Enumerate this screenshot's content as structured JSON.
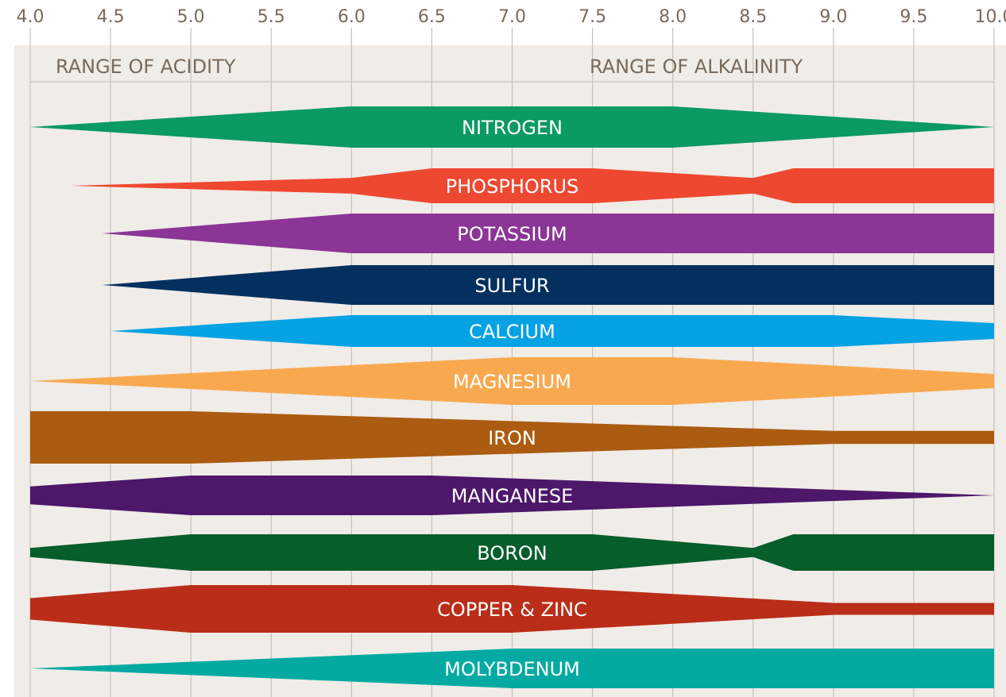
{
  "chart_data": {
    "type": "area",
    "title": "",
    "xlabel": "",
    "ylabel": "",
    "xlim": [
      4.0,
      10.0
    ],
    "grid": true,
    "x_ticks": [
      "4.0",
      "4.5",
      "5.0",
      "5.5",
      "6.0",
      "6.5",
      "7.0",
      "7.5",
      "8.0",
      "8.5",
      "9.0",
      "9.5",
      "10.0"
    ],
    "range_labels": {
      "left": "RANGE OF ACIDITY",
      "right": "RANGE OF ALKALINITY"
    },
    "bg_color": "#f0ece8",
    "grid_color": "#c8c0b8",
    "series": [
      {
        "name": "NITROGEN",
        "color": "#0a9a62",
        "label_ph": 7.0,
        "profile": [
          [
            4.0,
            0
          ],
          [
            6.0,
            1
          ],
          [
            8.0,
            1
          ],
          [
            10.0,
            0
          ]
        ]
      },
      {
        "name": "PHOSPHORUS",
        "color": "#ee4830",
        "label_ph": 7.0,
        "profile": [
          [
            4.25,
            0
          ],
          [
            6.0,
            0.45
          ],
          [
            6.5,
            1
          ],
          [
            7.5,
            1
          ],
          [
            8.5,
            0.45
          ],
          [
            8.75,
            1
          ],
          [
            10.0,
            1
          ]
        ]
      },
      {
        "name": "POTASSIUM",
        "color": "#8b3596",
        "label_ph": 7.0,
        "profile": [
          [
            4.45,
            0
          ],
          [
            6.0,
            1
          ],
          [
            10.0,
            1
          ]
        ]
      },
      {
        "name": "SULFUR",
        "color": "#03305e",
        "label_ph": 7.0,
        "profile": [
          [
            4.45,
            0
          ],
          [
            6.0,
            1
          ],
          [
            10.0,
            1
          ]
        ]
      },
      {
        "name": "CALCIUM",
        "color": "#05a2e4",
        "label_ph": 7.0,
        "profile": [
          [
            4.5,
            0
          ],
          [
            6.0,
            1
          ],
          [
            9.0,
            1
          ],
          [
            10.0,
            0.5
          ]
        ]
      },
      {
        "name": "MAGNESIUM",
        "color": "#f8a950",
        "label_ph": 7.0,
        "profile": [
          [
            4.0,
            0
          ],
          [
            7.0,
            1
          ],
          [
            8.0,
            1
          ],
          [
            10.0,
            0.3
          ]
        ]
      },
      {
        "name": "IRON",
        "color": "#ab5c11",
        "label_ph": 7.0,
        "profile": [
          [
            4.0,
            1
          ],
          [
            5.0,
            1
          ],
          [
            9.0,
            0.25
          ],
          [
            10.0,
            0.25
          ]
        ]
      },
      {
        "name": "MANGANESE",
        "color": "#4d176a",
        "label_ph": 7.0,
        "profile": [
          [
            4.0,
            0.45
          ],
          [
            5.0,
            1
          ],
          [
            6.5,
            1
          ],
          [
            10.0,
            0
          ]
        ]
      },
      {
        "name": "BORON",
        "color": "#065e2b",
        "label_ph": 7.0,
        "profile": [
          [
            4.0,
            0.25
          ],
          [
            5.0,
            1
          ],
          [
            7.5,
            1
          ],
          [
            8.5,
            0.25
          ],
          [
            8.75,
            1
          ],
          [
            10.0,
            1
          ]
        ]
      },
      {
        "name": "COPPER & ZINC",
        "color": "#ba2e19",
        "label_ph": 7.0,
        "profile": [
          [
            4.0,
            0.45
          ],
          [
            5.0,
            1
          ],
          [
            7.0,
            1
          ],
          [
            9.0,
            0.25
          ],
          [
            10.0,
            0.25
          ]
        ]
      },
      {
        "name": "MOLYBDENUM",
        "color": "#04aaa2",
        "label_ph": 7.0,
        "profile": [
          [
            4.0,
            0
          ],
          [
            7.0,
            1
          ],
          [
            10.0,
            1
          ]
        ]
      }
    ]
  }
}
